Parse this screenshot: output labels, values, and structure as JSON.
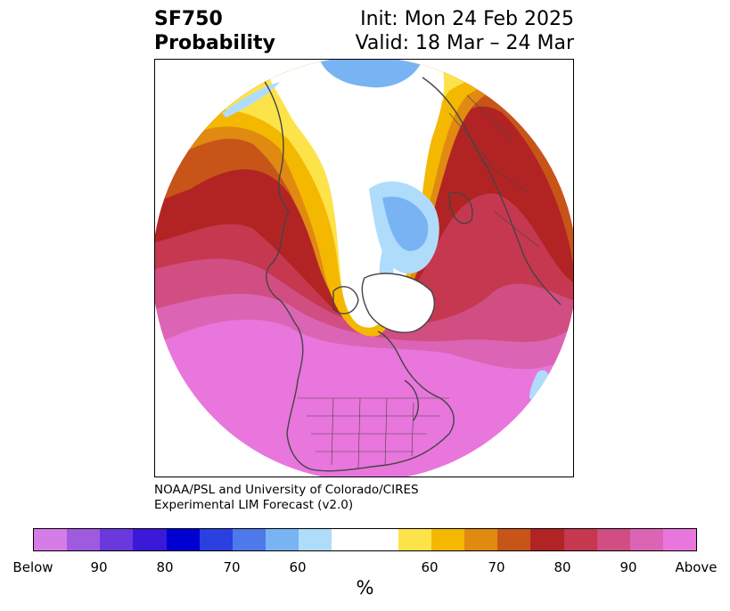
{
  "title": {
    "left_line1": "SF750",
    "left_line2": "Probability",
    "right_line1": "Init: Mon 24 Feb 2025",
    "right_line2": "Valid: 18 Mar – 24 Mar"
  },
  "credit": {
    "line1": "NOAA/PSL and University of Colorado/CIRES",
    "line2": "Experimental LIM Forecast (v2.0)"
  },
  "colorbar": {
    "colors": [
      "#d67ce6",
      "#a05ae0",
      "#6a38dc",
      "#3a1ad8",
      "#0000d2",
      "#2a40e0",
      "#4f78ea",
      "#78b4f4",
      "#b0dcfc",
      "#ffffff",
      "#ffffff",
      "#fde34a",
      "#f4b800",
      "#e08a12",
      "#c85518",
      "#b22424",
      "#c63850",
      "#d04e82",
      "#dc64b4",
      "#e876dc"
    ],
    "tick_labels": [
      "Below",
      "90",
      "80",
      "70",
      "60",
      "60",
      "70",
      "80",
      "90",
      "Above"
    ],
    "unit_label": "%"
  },
  "map": {
    "projection": "north-polar-stereographic",
    "palette": {
      "above_high": "#e876dc",
      "above_90": "#dc64b4",
      "above_85": "#d04e82",
      "above_80": "#c63850",
      "above_75": "#b22424",
      "above_70": "#c85518",
      "above_65": "#e08a12",
      "above_60": "#f4b800",
      "above_55": "#fde34a",
      "below_55": "#b0dcfc",
      "below_60": "#78b4f4",
      "below_65": "#4f78ea",
      "coastline": "#444444"
    }
  }
}
